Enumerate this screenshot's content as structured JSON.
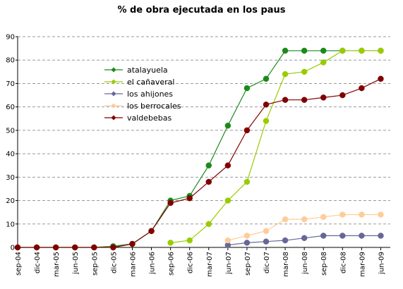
{
  "chart_data": {
    "type": "line",
    "title": "% de obra ejecutada en los paus",
    "xlabel": "",
    "ylabel": "",
    "ylim": [
      0,
      90
    ],
    "yticks": [
      0,
      10,
      20,
      30,
      40,
      50,
      60,
      70,
      80,
      90
    ],
    "grid": true,
    "legend_position": "left-middle",
    "categories": [
      "sep-04",
      "dic-04",
      "mar-05",
      "jun-05",
      "sep-05",
      "dic-05",
      "mar-06",
      "jun-06",
      "sep-06",
      "dic-06",
      "mar-07",
      "jun-07",
      "sep-07",
      "dic-07",
      "mar-08",
      "jun-08",
      "sep-08",
      "dic-08",
      "mar-09",
      "jun-09"
    ],
    "series": [
      {
        "name": "atalayuela",
        "color": "#1a8a1a",
        "marker": "diamond",
        "values": [
          0,
          0,
          0,
          0,
          0,
          0.5,
          1.5,
          7,
          20,
          22,
          35,
          52,
          68,
          72,
          84,
          84,
          84,
          84,
          84,
          84
        ]
      },
      {
        "name": "el cañaveral",
        "color": "#99cc00",
        "marker": "diamond",
        "values": [
          null,
          null,
          null,
          null,
          null,
          null,
          null,
          null,
          2,
          3,
          10,
          20,
          28,
          54,
          74,
          75,
          79,
          84,
          84,
          84
        ]
      },
      {
        "name": "los ahijones",
        "color": "#666699",
        "marker": "diamond",
        "values": [
          null,
          null,
          null,
          null,
          null,
          null,
          null,
          null,
          null,
          null,
          null,
          1,
          2,
          2.5,
          3,
          4,
          5,
          5,
          5,
          5
        ]
      },
      {
        "name": "los berrocales",
        "color": "#ffcc99",
        "marker": "diamond",
        "values": [
          null,
          null,
          null,
          null,
          null,
          null,
          null,
          null,
          null,
          null,
          null,
          3,
          5,
          7,
          12,
          12,
          13,
          14,
          14,
          14
        ]
      },
      {
        "name": "valdebebas",
        "color": "#800000",
        "marker": "diamond",
        "values": [
          0,
          0,
          0,
          0,
          0,
          0,
          1.5,
          7,
          19,
          21,
          28,
          35,
          50,
          61,
          63,
          63,
          64,
          65,
          68,
          72
        ]
      }
    ]
  }
}
